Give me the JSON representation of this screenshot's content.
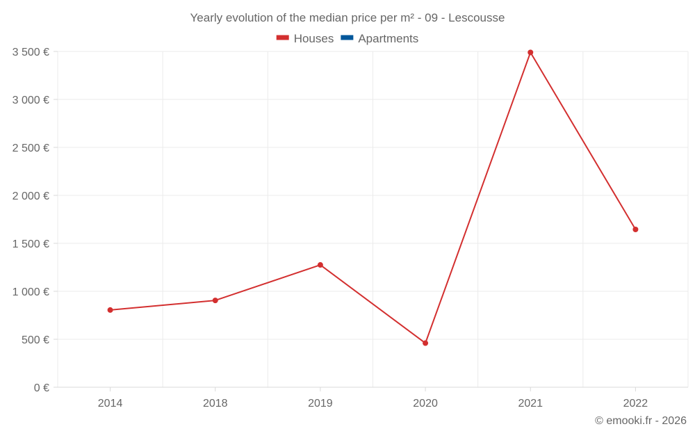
{
  "chart_data": {
    "type": "line",
    "title": "Yearly evolution of the median price per m² - 09 - Lescousse",
    "categories": [
      "2014",
      "2018",
      "2019",
      "2020",
      "2021",
      "2022"
    ],
    "series": [
      {
        "name": "Houses",
        "color": "#d32f2f",
        "values": [
          805,
          905,
          1275,
          460,
          3490,
          1645
        ]
      },
      {
        "name": "Apartments",
        "color": "#01579b",
        "values": [
          null,
          null,
          null,
          null,
          null,
          null
        ]
      }
    ],
    "xlabel": "",
    "ylabel": "",
    "ylim": [
      0,
      3500
    ],
    "y_ticks": [
      0,
      500,
      1000,
      1500,
      2000,
      2500,
      3000,
      3500
    ],
    "y_tick_labels": [
      "0 €",
      "500 €",
      "1 000 €",
      "1 500 €",
      "2 000 €",
      "2 500 €",
      "3 000 €",
      "3 500 €"
    ],
    "grid": true,
    "legend_position": "top-center"
  },
  "credit": "© emooki.fr - 2026"
}
